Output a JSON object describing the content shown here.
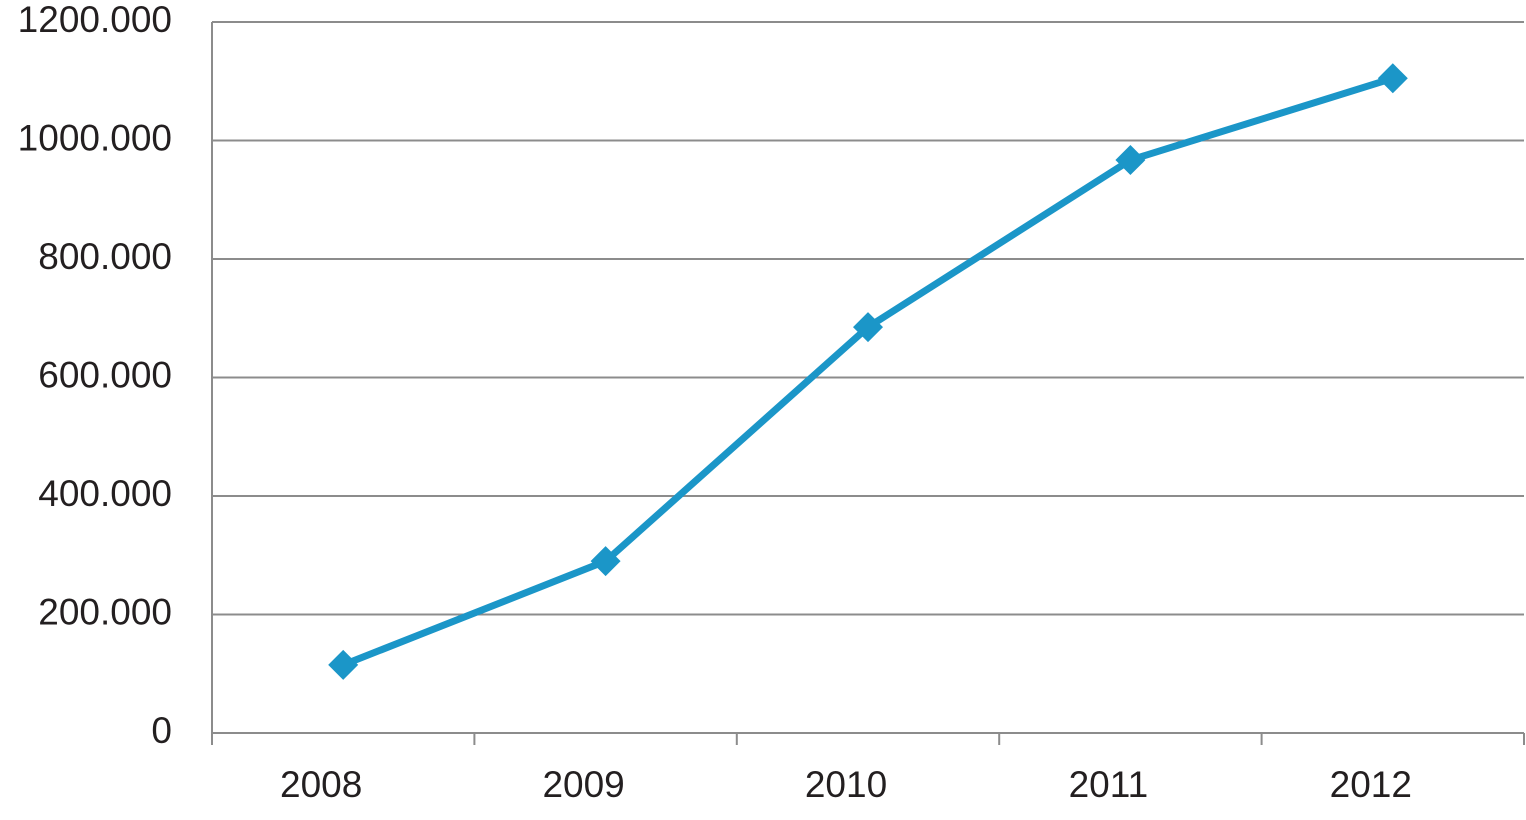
{
  "chart_data": {
    "type": "line",
    "categories": [
      "2008",
      "2009",
      "2010",
      "2011",
      "2012"
    ],
    "values": [
      115000,
      290000,
      685000,
      967000,
      1105000
    ],
    "color": "#1b96c8",
    "ylim": [
      0,
      1200000
    ],
    "yticks": [
      0,
      {
        "value": 200000,
        "label": "200.000"
      },
      {
        "value": 400000,
        "label": "400.000"
      },
      {
        "value": 600000,
        "label": "600.000"
      },
      {
        "value": 800000,
        "label": "800.000"
      },
      {
        "value": 1000000,
        "label": "1000.000"
      },
      {
        "value": 1200000,
        "label": "1200.000"
      }
    ],
    "grid": true
  }
}
